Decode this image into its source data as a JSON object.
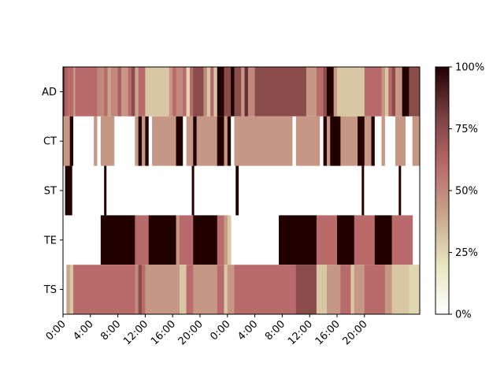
{
  "chart_data": {
    "type": "heatmap",
    "title": "",
    "xlabel": "",
    "ylabel": "",
    "x_ticks": [
      "0:00",
      "4:00",
      "8:00",
      "12:00",
      "16:00",
      "20:00",
      "0:00",
      "4:00",
      "8:00",
      "12:00",
      "16:00",
      "20:00"
    ],
    "x_tick_hours": [
      0,
      4,
      8,
      12,
      16,
      20,
      24,
      28,
      32,
      36,
      40,
      44
    ],
    "xlim_hours": [
      0,
      48
    ],
    "rows": [
      "AD",
      "CT",
      "ST",
      "TE",
      "TS"
    ],
    "colorbar": {
      "ticks": [
        "0%",
        "25%",
        "50%",
        "75%",
        "100%"
      ],
      "range": [
        0,
        100
      ],
      "colors": [
        "#ffffff",
        "#e8e6bd",
        "#c9a58c",
        "#b96b6b",
        "#7a4040",
        "#220000"
      ]
    },
    "segments": {
      "AD": [
        [
          0,
          0.2,
          90
        ],
        [
          0.2,
          0.6,
          65
        ],
        [
          0.6,
          1.5,
          60
        ],
        [
          1.5,
          1.8,
          45
        ],
        [
          1.8,
          5,
          60
        ],
        [
          5,
          6,
          50
        ],
        [
          6,
          6.5,
          60
        ],
        [
          6.5,
          7,
          40
        ],
        [
          7,
          8,
          50
        ],
        [
          8,
          8.5,
          65
        ],
        [
          8.5,
          9.5,
          45
        ],
        [
          9.5,
          10,
          60
        ],
        [
          10,
          10.5,
          75
        ],
        [
          10.5,
          11,
          40
        ],
        [
          11,
          12,
          60
        ],
        [
          12,
          15.5,
          30
        ],
        [
          15.5,
          16,
          45
        ],
        [
          16,
          16.5,
          60
        ],
        [
          16.5,
          17.5,
          50
        ],
        [
          17.5,
          18,
          60
        ],
        [
          18,
          18.5,
          25
        ],
        [
          18.5,
          19,
          60
        ],
        [
          19,
          20.5,
          75
        ],
        [
          20.5,
          21,
          50
        ],
        [
          21,
          21.5,
          30
        ],
        [
          21.5,
          22,
          60
        ],
        [
          22,
          22.5,
          30
        ],
        [
          22.5,
          23.5,
          100
        ],
        [
          23.5,
          24.5,
          75
        ],
        [
          24.5,
          25,
          100
        ],
        [
          25,
          26,
          75
        ],
        [
          26,
          26.5,
          45
        ],
        [
          26.5,
          27,
          85
        ],
        [
          27,
          28,
          50
        ],
        [
          28,
          35.5,
          75
        ],
        [
          35.5,
          37,
          45
        ],
        [
          37,
          38,
          60
        ],
        [
          38,
          38.5,
          75
        ],
        [
          38.5,
          39.5,
          100
        ],
        [
          39.5,
          40,
          45
        ],
        [
          40,
          44,
          30
        ],
        [
          44,
          46.5,
          60
        ],
        [
          46.5,
          47,
          45
        ],
        [
          47,
          47.5,
          30
        ],
        [
          47.5,
          48,
          60
        ],
        [
          48,
          48.5,
          75
        ],
        [
          48.5,
          49.5,
          45
        ],
        [
          49.5,
          50.5,
          100
        ],
        [
          50.5,
          51.5,
          75
        ],
        [
          51.5,
          52,
          75
        ]
      ],
      "CT": [
        [
          0,
          1,
          45
        ],
        [
          1,
          1.5,
          100
        ],
        [
          1.5,
          4.5,
          0
        ],
        [
          4.5,
          5,
          45
        ],
        [
          5,
          5.5,
          0
        ],
        [
          5.5,
          7.5,
          45
        ],
        [
          7.5,
          10.5,
          0
        ],
        [
          10.5,
          11,
          45
        ],
        [
          11,
          11.5,
          100
        ],
        [
          11.5,
          12,
          45
        ],
        [
          12,
          12.5,
          100
        ],
        [
          12.5,
          13,
          0
        ],
        [
          13,
          16.5,
          45
        ],
        [
          16.5,
          17.5,
          100
        ],
        [
          17.5,
          18,
          0
        ],
        [
          18,
          19,
          45
        ],
        [
          19,
          19.5,
          100
        ],
        [
          19.5,
          22.5,
          45
        ],
        [
          22.5,
          23.5,
          100
        ],
        [
          23.5,
          24,
          45
        ],
        [
          24,
          24.5,
          100
        ],
        [
          24.5,
          25,
          0
        ],
        [
          25,
          33.5,
          45
        ],
        [
          33.5,
          34,
          0
        ],
        [
          34,
          37.5,
          45
        ],
        [
          37.5,
          38,
          0
        ],
        [
          38,
          38.5,
          100
        ],
        [
          38.5,
          39,
          45
        ],
        [
          39,
          40.5,
          100
        ],
        [
          40.5,
          43,
          45
        ],
        [
          43,
          44,
          100
        ],
        [
          44,
          45,
          45
        ],
        [
          45,
          45.5,
          100
        ],
        [
          45.5,
          46.5,
          0
        ],
        [
          46.5,
          47,
          45
        ],
        [
          47,
          48.5,
          0
        ],
        [
          48.5,
          50,
          45
        ],
        [
          50,
          51,
          0
        ],
        [
          51,
          52,
          45
        ]
      ],
      "ST": [
        [
          0.3,
          1.3,
          100
        ],
        [
          6,
          6.3,
          100
        ],
        [
          18.8,
          19.1,
          100
        ],
        [
          25.2,
          25.6,
          100
        ],
        [
          43.6,
          43.9,
          100
        ],
        [
          49,
          49.3,
          100
        ]
      ],
      "TE": [
        [
          5.5,
          10.5,
          100
        ],
        [
          10.5,
          12.5,
          60
        ],
        [
          12.5,
          16.5,
          100
        ],
        [
          16.5,
          17,
          45
        ],
        [
          17,
          19,
          60
        ],
        [
          19,
          22.5,
          100
        ],
        [
          22.5,
          23.5,
          60
        ],
        [
          23.5,
          24,
          45
        ],
        [
          24,
          24.5,
          30
        ],
        [
          31.5,
          37,
          100
        ],
        [
          37,
          40,
          60
        ],
        [
          40,
          42.5,
          100
        ],
        [
          42.5,
          45.5,
          60
        ],
        [
          45.5,
          48,
          100
        ],
        [
          48,
          51,
          60
        ]
      ],
      "TS": [
        [
          0.5,
          1,
          40
        ],
        [
          1,
          1.5,
          30
        ],
        [
          1.5,
          7,
          60
        ],
        [
          7,
          10.5,
          60
        ],
        [
          10.5,
          11,
          50
        ],
        [
          11,
          11.5,
          75
        ],
        [
          11.5,
          12,
          60
        ],
        [
          12,
          17,
          45
        ],
        [
          17,
          18,
          30
        ],
        [
          18,
          19,
          60
        ],
        [
          19,
          22.5,
          45
        ],
        [
          22.5,
          23.5,
          60
        ],
        [
          23.5,
          24,
          30
        ],
        [
          24,
          25,
          45
        ],
        [
          25,
          34,
          60
        ],
        [
          34,
          37,
          75
        ],
        [
          37,
          38.5,
          30
        ],
        [
          38.5,
          40.5,
          45
        ],
        [
          40.5,
          42,
          60
        ],
        [
          42,
          42.5,
          30
        ],
        [
          42.5,
          44,
          45
        ],
        [
          44,
          47,
          60
        ],
        [
          47,
          48,
          45
        ],
        [
          48,
          50.5,
          30
        ],
        [
          50.5,
          52,
          25
        ]
      ]
    }
  }
}
